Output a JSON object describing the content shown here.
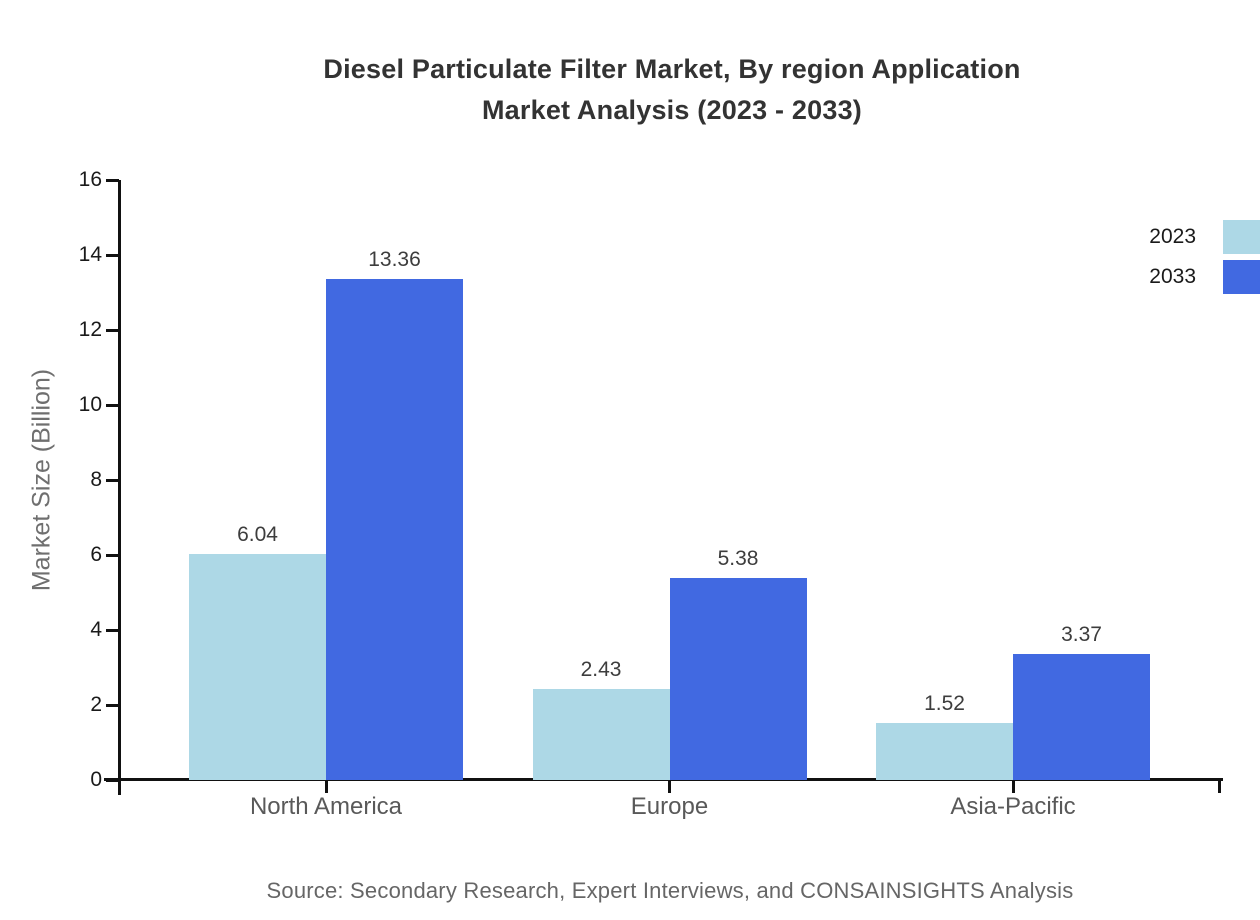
{
  "header": {
    "title_line1": "Diesel Particulate Filter Market, By region Application",
    "title_line2": "Market Analysis (2023 - 2033)"
  },
  "footer": {
    "source": "Source: Secondary Research, Expert Interviews, and CONSAINSIGHTS Analysis"
  },
  "chart_data": {
    "type": "bar",
    "title": "Diesel Particulate Filter Market, By region Application Market Analysis (2023 - 2033)",
    "categories": [
      "North America",
      "Europe",
      "Asia-Pacific"
    ],
    "series": [
      {
        "name": "2023",
        "color": "#ADD8E6",
        "values": [
          6.04,
          2.43,
          1.52
        ]
      },
      {
        "name": "2033",
        "color": "#4169E1",
        "values": [
          13.36,
          5.38,
          3.37
        ]
      }
    ],
    "value_labels": [
      "6.04",
      "13.36",
      "2.43",
      "5.38",
      "1.52",
      "3.37"
    ],
    "xlabel": "",
    "ylabel": "Market Size (Billion)",
    "ylim": [
      0,
      16
    ],
    "yticks": [
      "0",
      "2",
      "4",
      "6",
      "8",
      "10",
      "12",
      "14",
      "16"
    ],
    "grid": false,
    "legend_position": "top-right",
    "legend_entries": [
      "2023",
      "2033"
    ],
    "colors": {
      "axis": "#111111",
      "bar_2023": "#ADD8E6",
      "bar_2033": "#4169E1",
      "title_text": "#333333",
      "value_label_text": "#3d3d3d",
      "tick_label_text": "#1a1a1a",
      "category_label_text": "#595959",
      "y_title_text": "#6f6f6f",
      "source_text": "#666666",
      "background": "#ffffff"
    }
  }
}
